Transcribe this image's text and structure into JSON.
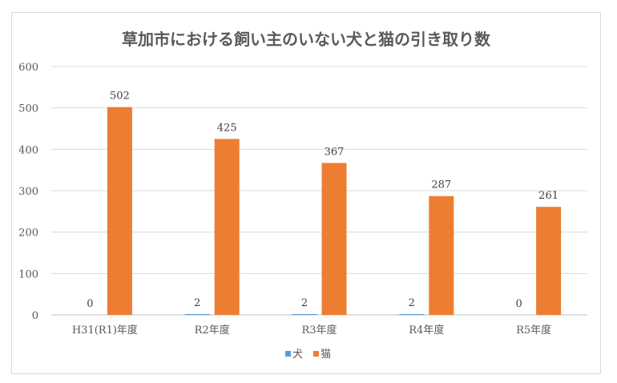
{
  "chart_data": {
    "type": "bar",
    "title": "草加市における飼い主のいない犬と猫の引き取り数",
    "categories": [
      "H31(R1)年度",
      "R2年度",
      "R3年度",
      "R4年度",
      "R5年度"
    ],
    "series": [
      {
        "name": "犬",
        "values": [
          0,
          2,
          2,
          2,
          0
        ],
        "color": "#5b9bd5"
      },
      {
        "name": "猫",
        "values": [
          502,
          425,
          367,
          287,
          261
        ],
        "color": "#ed7d31"
      }
    ],
    "ylim": [
      0,
      600
    ],
    "yticks": [
      0,
      100,
      200,
      300,
      400,
      500,
      600
    ],
    "xlabel": "",
    "ylabel": "",
    "grid": true,
    "legend_position": "bottom"
  }
}
